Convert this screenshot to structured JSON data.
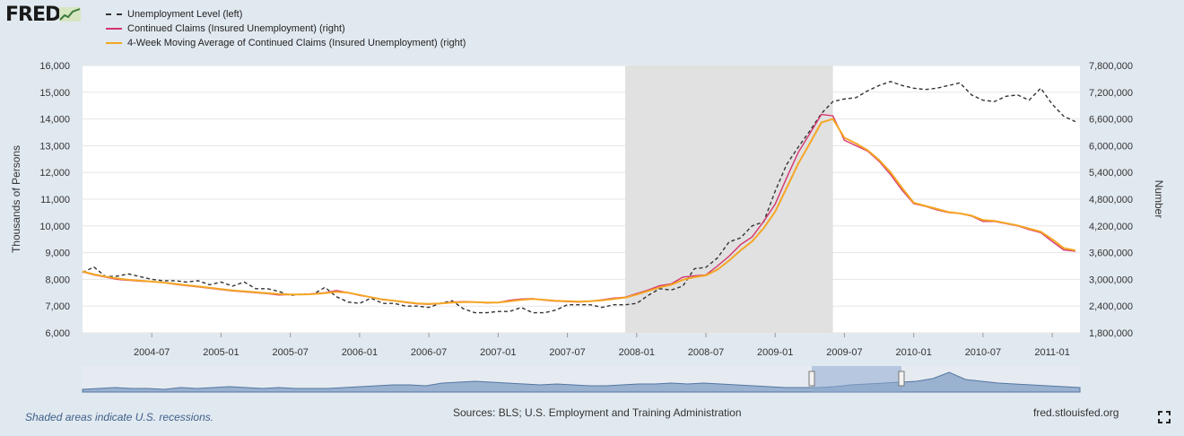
{
  "brand": {
    "name": "FRED"
  },
  "legend": [
    {
      "label": "Unemployment Level (left)",
      "color": "#333333",
      "dash": true
    },
    {
      "label": "Continued Claims (Insured Unemployment) (right)",
      "color": "#d6346e",
      "dash": false
    },
    {
      "label": "4-Week Moving Average of Continued Claims (Insured Unemployment) (right)",
      "color": "#f5a623",
      "dash": false
    }
  ],
  "footer": {
    "note": "Shaded areas indicate U.S. recessions.",
    "source": "Sources: BLS; U.S. Employment and Training Administration",
    "site": "fred.stlouisfed.org"
  },
  "chart_data": {
    "type": "line",
    "ylabel_left": "Thousands of Persons",
    "ylabel_right": "Number",
    "ylim_left": [
      6000,
      16000
    ],
    "ylim_right": [
      1800000,
      7800000
    ],
    "yticks_left": [
      "6,000",
      "7,000",
      "8,000",
      "9,000",
      "10,000",
      "11,000",
      "12,000",
      "13,000",
      "14,000",
      "15,000",
      "16,000"
    ],
    "yticks_right": [
      "1,800,000",
      "2,400,000",
      "3,000,000",
      "3,600,000",
      "4,200,000",
      "4,800,000",
      "5,400,000",
      "6,000,000",
      "6,600,000",
      "7,200,000",
      "7,800,000"
    ],
    "xticks": [
      "2004-07",
      "2005-01",
      "2005-07",
      "2006-01",
      "2006-07",
      "2007-01",
      "2007-07",
      "2008-01",
      "2008-07",
      "2009-01",
      "2009-07",
      "2010-01",
      "2010-07",
      "2011-01"
    ],
    "xlim": [
      2004.0,
      2011.2
    ],
    "recession": [
      2007.917,
      2009.417
    ],
    "grid": true,
    "series": [
      {
        "name": "Unemployment Level (left)",
        "axis": "left",
        "color": "#333333",
        "x": [
          2004.0,
          2004.083,
          2004.167,
          2004.25,
          2004.333,
          2004.417,
          2004.5,
          2004.583,
          2004.667,
          2004.75,
          2004.833,
          2004.917,
          2005.0,
          2005.083,
          2005.167,
          2005.25,
          2005.333,
          2005.417,
          2005.5,
          2005.583,
          2005.667,
          2005.75,
          2005.833,
          2005.917,
          2006.0,
          2006.083,
          2006.167,
          2006.25,
          2006.333,
          2006.417,
          2006.5,
          2006.583,
          2006.667,
          2006.75,
          2006.833,
          2006.917,
          2007.0,
          2007.083,
          2007.167,
          2007.25,
          2007.333,
          2007.417,
          2007.5,
          2007.583,
          2007.667,
          2007.75,
          2007.833,
          2007.917,
          2008.0,
          2008.083,
          2008.167,
          2008.25,
          2008.333,
          2008.417,
          2008.5,
          2008.583,
          2008.667,
          2008.75,
          2008.833,
          2008.917,
          2009.0,
          2009.083,
          2009.167,
          2009.25,
          2009.333,
          2009.417,
          2009.5,
          2009.583,
          2009.667,
          2009.75,
          2009.833,
          2009.917,
          2010.0,
          2010.083,
          2010.167,
          2010.25,
          2010.333,
          2010.417,
          2010.5,
          2010.583,
          2010.667,
          2010.75,
          2010.833,
          2010.917,
          2011.0,
          2011.083,
          2011.167
        ],
        "values": [
          8260,
          8460,
          8100,
          8120,
          8200,
          8100,
          8000,
          7950,
          7950,
          7900,
          7950,
          7800,
          7900,
          7750,
          7900,
          7650,
          7650,
          7550,
          7400,
          7450,
          7450,
          7700,
          7350,
          7150,
          7100,
          7300,
          7100,
          7100,
          7000,
          7000,
          6950,
          7100,
          7200,
          6900,
          6750,
          6750,
          6800,
          6800,
          6950,
          6750,
          6750,
          6850,
          7050,
          7050,
          7050,
          6950,
          7050,
          7050,
          7100,
          7400,
          7650,
          7600,
          7750,
          8400,
          8450,
          8800,
          9400,
          9550,
          10000,
          10150,
          11300,
          12300,
          12950,
          13550,
          14200,
          14650,
          14750,
          14800,
          15050,
          15250,
          15400,
          15250,
          15150,
          15100,
          15150,
          15250,
          15350,
          14900,
          14700,
          14650,
          14850,
          14900,
          14700,
          15150,
          14550,
          14100,
          13900
        ]
      },
      {
        "name": "Continued Claims (Insured Unemployment) (right)",
        "axis": "right",
        "color": "#d6346e",
        "x": [
          2004.0,
          2004.083,
          2004.167,
          2004.25,
          2004.333,
          2004.417,
          2004.5,
          2004.583,
          2004.667,
          2004.75,
          2004.833,
          2004.917,
          2005.0,
          2005.083,
          2005.167,
          2005.25,
          2005.333,
          2005.417,
          2005.5,
          2005.583,
          2005.667,
          2005.75,
          2005.833,
          2005.917,
          2006.0,
          2006.083,
          2006.167,
          2006.25,
          2006.333,
          2006.417,
          2006.5,
          2006.583,
          2006.667,
          2006.75,
          2006.833,
          2006.917,
          2007.0,
          2007.083,
          2007.167,
          2007.25,
          2007.333,
          2007.417,
          2007.5,
          2007.583,
          2007.667,
          2007.75,
          2007.833,
          2007.917,
          2008.0,
          2008.083,
          2008.167,
          2008.25,
          2008.333,
          2008.417,
          2008.5,
          2008.583,
          2008.667,
          2008.75,
          2008.833,
          2008.917,
          2009.0,
          2009.083,
          2009.167,
          2009.25,
          2009.333,
          2009.417,
          2009.5,
          2009.583,
          2009.667,
          2009.75,
          2009.833,
          2009.917,
          2010.0,
          2010.083,
          2010.167,
          2010.25,
          2010.333,
          2010.417,
          2010.5,
          2010.583,
          2010.667,
          2010.75,
          2010.833,
          2010.917,
          2011.0,
          2011.083,
          2011.167
        ],
        "values": [
          3170000,
          3100000,
          3050000,
          3000000,
          2980000,
          2960000,
          2950000,
          2930000,
          2890000,
          2860000,
          2830000,
          2800000,
          2770000,
          2740000,
          2720000,
          2700000,
          2680000,
          2650000,
          2660000,
          2660000,
          2680000,
          2700000,
          2750000,
          2700000,
          2640000,
          2600000,
          2540000,
          2520000,
          2480000,
          2450000,
          2440000,
          2460000,
          2490000,
          2500000,
          2490000,
          2470000,
          2480000,
          2530000,
          2560000,
          2570000,
          2530000,
          2510000,
          2500000,
          2490000,
          2510000,
          2540000,
          2580000,
          2600000,
          2680000,
          2760000,
          2860000,
          2900000,
          3050000,
          3080000,
          3100000,
          3300000,
          3520000,
          3780000,
          3950000,
          4300000,
          4690000,
          5280000,
          5850000,
          6270000,
          6700000,
          6670000,
          6120000,
          6000000,
          5880000,
          5650000,
          5350000,
          5000000,
          4700000,
          4640000,
          4560000,
          4500000,
          4480000,
          4420000,
          4300000,
          4300000,
          4250000,
          4200000,
          4120000,
          4050000,
          3850000,
          3660000,
          3630000
        ]
      },
      {
        "name": "4-Week Moving Average of Continued Claims (Insured Unemployment) (right)",
        "axis": "right",
        "color": "#f5a623",
        "x": [
          2004.0,
          2004.083,
          2004.167,
          2004.25,
          2004.333,
          2004.417,
          2004.5,
          2004.583,
          2004.667,
          2004.75,
          2004.833,
          2004.917,
          2005.0,
          2005.083,
          2005.167,
          2005.25,
          2005.333,
          2005.417,
          2005.5,
          2005.583,
          2005.667,
          2005.75,
          2005.833,
          2005.917,
          2006.0,
          2006.083,
          2006.167,
          2006.25,
          2006.333,
          2006.417,
          2006.5,
          2006.583,
          2006.667,
          2006.75,
          2006.833,
          2006.917,
          2007.0,
          2007.083,
          2007.167,
          2007.25,
          2007.333,
          2007.417,
          2007.5,
          2007.583,
          2007.667,
          2007.75,
          2007.833,
          2007.917,
          2008.0,
          2008.083,
          2008.167,
          2008.25,
          2008.333,
          2008.417,
          2008.5,
          2008.583,
          2008.667,
          2008.75,
          2008.833,
          2008.917,
          2009.0,
          2009.083,
          2009.167,
          2009.25,
          2009.333,
          2009.417,
          2009.5,
          2009.583,
          2009.667,
          2009.75,
          2009.833,
          2009.917,
          2010.0,
          2010.083,
          2010.167,
          2010.25,
          2010.333,
          2010.417,
          2010.5,
          2010.583,
          2010.667,
          2010.75,
          2010.833,
          2010.917,
          2011.0,
          2011.083,
          2011.167
        ],
        "values": [
          3180000,
          3110000,
          3060000,
          3020000,
          2990000,
          2970000,
          2950000,
          2930000,
          2900000,
          2870000,
          2840000,
          2810000,
          2780000,
          2750000,
          2730000,
          2710000,
          2690000,
          2670000,
          2660000,
          2660000,
          2670000,
          2690000,
          2720000,
          2700000,
          2650000,
          2600000,
          2550000,
          2520000,
          2490000,
          2460000,
          2450000,
          2460000,
          2480000,
          2490000,
          2490000,
          2480000,
          2480000,
          2510000,
          2540000,
          2560000,
          2540000,
          2520000,
          2510000,
          2500000,
          2510000,
          2530000,
          2560000,
          2590000,
          2660000,
          2740000,
          2820000,
          2880000,
          2990000,
          3050000,
          3090000,
          3220000,
          3420000,
          3650000,
          3850000,
          4150000,
          4520000,
          5050000,
          5600000,
          6050000,
          6520000,
          6600000,
          6180000,
          6050000,
          5900000,
          5680000,
          5400000,
          5050000,
          4720000,
          4650000,
          4580000,
          4510000,
          4480000,
          4430000,
          4330000,
          4310000,
          4260000,
          4210000,
          4140000,
          4070000,
          3900000,
          3700000,
          3650000
        ]
      }
    ]
  }
}
